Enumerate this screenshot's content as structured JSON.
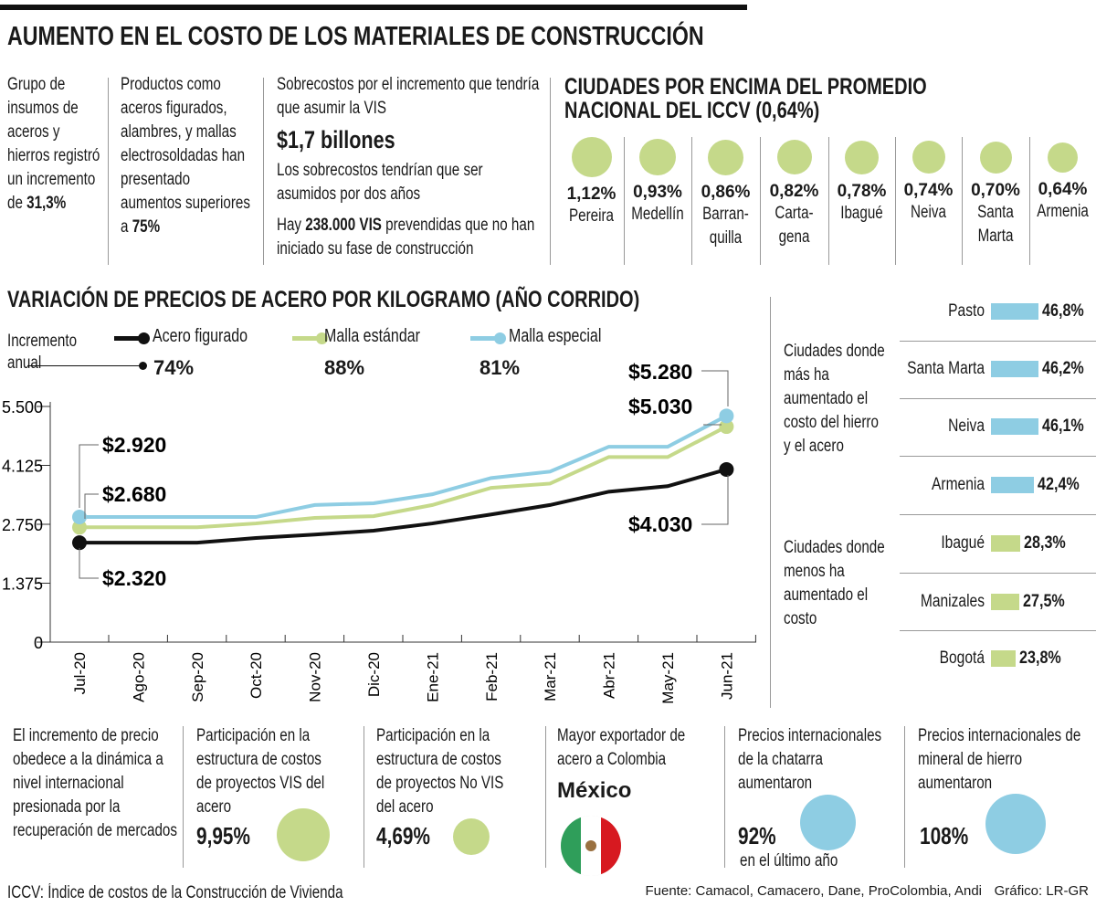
{
  "title": "AUMENTO EN EL COSTO DE LOS MATERIALES DE CONSTRUCCIÓN",
  "colors": {
    "black": "#111111",
    "green": "#c5d98a",
    "blue": "#8ecde3",
    "divider": "#999999"
  },
  "top_facts": {
    "col1": {
      "text": "Grupo de insumos de aceros y hierros registró un incremento de ",
      "bold": "31,3%"
    },
    "col2": {
      "text": "Productos como aceros figurados, alambres, y mallas electrosoldadas han presentado aumentos superiores a ",
      "bold": "75%"
    },
    "col3": {
      "line1": "Sobrecostos por el incremento que tendría que asumir la VIS",
      "amount": "$1,7 billones",
      "line2": "Los sobrecostos tendrían que ser asumidos por dos años",
      "line3_pre": "Hay ",
      "line3_bold": "238.000 VIS",
      "line3_post": " prevendidas que no han iniciado su fase de construcción"
    }
  },
  "cities_title": "CIUDADES POR ENCIMA DEL PROMEDIO NACIONAL DEL ICCV (0,64%)",
  "cities": [
    {
      "value": 1.12,
      "label": "1,12%",
      "name": "Pereira"
    },
    {
      "value": 0.93,
      "label": "0,93%",
      "name": "Medellín"
    },
    {
      "value": 0.86,
      "label": "0,86%",
      "name": "Barran-quilla"
    },
    {
      "value": 0.82,
      "label": "0,82%",
      "name": "Carta-gena"
    },
    {
      "value": 0.78,
      "label": "0,78%",
      "name": "Ibagué"
    },
    {
      "value": 0.74,
      "label": "0,74%",
      "name": "Neiva"
    },
    {
      "value": 0.7,
      "label": "0,70%",
      "name": "Santa Marta"
    },
    {
      "value": 0.64,
      "label": "0,64%",
      "name": "Armenia"
    }
  ],
  "chart_title": "VARIACIÓN DE PRECIOS DE ACERO POR KILOGRAMO (AÑO CORRIDO)",
  "annual_label": "Incremento anual",
  "chart_data": {
    "type": "line",
    "title": "VARIACIÓN DE PRECIOS DE ACERO POR KILOGRAMO (AÑO CORRIDO)",
    "categories": [
      "Jul-20",
      "Ago-20",
      "Sep-20",
      "Oct-20",
      "Nov-20",
      "Dic-20",
      "Ene-21",
      "Feb-21",
      "Mar-21",
      "Abr-21",
      "May-21",
      "Jun-21"
    ],
    "yticks": [
      "0",
      "1.375",
      "2.750",
      "4.125",
      "5.500"
    ],
    "ytick_values": [
      0,
      1375,
      2750,
      4125,
      5500
    ],
    "ylim": [
      0,
      5500
    ],
    "grid": false,
    "legend_placement": "top",
    "series": [
      {
        "name": "Acero figurado",
        "increase": "74%",
        "color": "#111111",
        "values": [
          2320,
          2320,
          2320,
          2430,
          2510,
          2600,
          2770,
          2980,
          3200,
          3510,
          3640,
          4030
        ],
        "start_label": "$2.320",
        "end_label": "$4.030"
      },
      {
        "name": "Malla estándar",
        "increase": "88%",
        "color": "#c5d98a",
        "values": [
          2680,
          2680,
          2680,
          2770,
          2900,
          2940,
          3200,
          3600,
          3700,
          4320,
          4320,
          5030
        ],
        "start_label": "$2.680",
        "end_label": "$5.030"
      },
      {
        "name": "Malla especial",
        "increase": "81%",
        "color": "#8ecde3",
        "values": [
          2920,
          2920,
          2920,
          2920,
          3200,
          3240,
          3450,
          3830,
          3980,
          4560,
          4560,
          5280
        ],
        "start_label": "$2.920",
        "end_label": "$5.280"
      }
    ]
  },
  "rank": {
    "most_label": "Ciudades donde más ha aumentado el costo del hierro y el acero",
    "least_label": "Ciudades donde menos ha aumentado el costo",
    "items": [
      {
        "city": "Pasto",
        "value": 46.8,
        "label": "46,8%",
        "color": "#8ecde3"
      },
      {
        "city": "Santa Marta",
        "value": 46.2,
        "label": "46,2%",
        "color": "#8ecde3"
      },
      {
        "city": "Neiva",
        "value": 46.1,
        "label": "46,1%",
        "color": "#8ecde3"
      },
      {
        "city": "Armenia",
        "value": 42.4,
        "label": "42,4%",
        "color": "#8ecde3"
      },
      {
        "city": "Ibagué",
        "value": 28.3,
        "label": "28,3%",
        "color": "#c5d98a"
      },
      {
        "city": "Manizales",
        "value": 27.5,
        "label": "27,5%",
        "color": "#c5d98a"
      },
      {
        "city": "Bogotá",
        "value": 23.8,
        "label": "23,8%",
        "color": "#c5d98a"
      }
    ]
  },
  "bottom": {
    "b1": "El incremento de precio obedece a la dinámica a nivel internacional presionada por la recuperación de mercados",
    "b2": {
      "text": "Participación en la estructura de costos de proyectos VIS del acero",
      "value": "9,95%",
      "num": 9.95
    },
    "b3": {
      "text": "Participación en la estructura de costos de proyectos No VIS del acero",
      "value": "4,69%",
      "num": 4.69
    },
    "b4": {
      "text": "Mayor exportador de acero a Colombia",
      "country": "México",
      "flag_icon": "mexico-flag"
    },
    "b5": {
      "text": "Precios internacionales de la chatarra aumentaron",
      "value": "92%",
      "num": 92,
      "note": "en el último año"
    },
    "b6": {
      "text": "Precios internacionales de mineral de hierro aumentaron",
      "value": "108%",
      "num": 108
    }
  },
  "footer": {
    "note": "ICCV: Índice de costos de la Construcción de Vivienda",
    "source": "Fuente: Camacol, Camacero, Dane, ProColombia, Andi",
    "credit": "Gráfico: LR-GR"
  }
}
